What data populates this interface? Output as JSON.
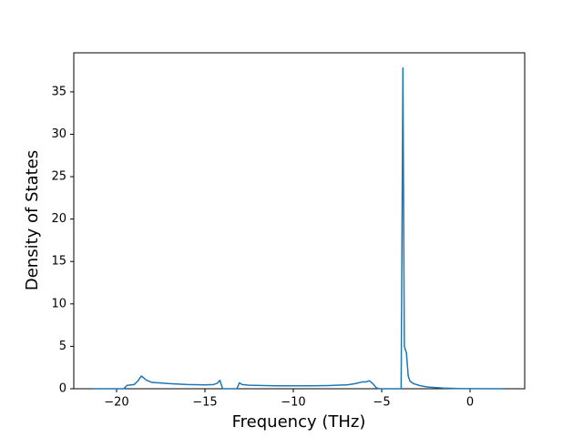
{
  "chart_data": {
    "type": "line",
    "xlabel": "Frequency (THz)",
    "ylabel": "Density of States",
    "x": [
      -21.4,
      -19.6,
      -19.4,
      -19.0,
      -18.8,
      -18.6,
      -18.3,
      -18.0,
      -17.0,
      -16.0,
      -15.0,
      -14.5,
      -14.3,
      -14.15,
      -14.0,
      -13.2,
      -13.05,
      -12.9,
      -12.5,
      -11.0,
      -9.0,
      -8.0,
      -7.0,
      -6.5,
      -6.1,
      -5.9,
      -5.7,
      -5.5,
      -5.3,
      -5.1,
      -3.9,
      -3.8,
      -3.72,
      -3.6,
      -3.5,
      -3.4,
      -3.2,
      -2.8,
      -2.4,
      -1.5,
      -0.5,
      1.9
    ],
    "values": [
      0,
      0,
      0.4,
      0.5,
      0.9,
      1.5,
      1.0,
      0.75,
      0.6,
      0.5,
      0.45,
      0.5,
      0.65,
      1.0,
      0,
      0,
      0.7,
      0.5,
      0.42,
      0.35,
      0.35,
      0.38,
      0.45,
      0.6,
      0.8,
      0.8,
      0.95,
      0.6,
      0.1,
      0,
      0,
      37.8,
      5.0,
      4.2,
      1.5,
      0.9,
      0.6,
      0.35,
      0.2,
      0.08,
      0.01,
      0
    ],
    "color": "#1f77b4",
    "xlim": [
      -22.42,
      3.09
    ],
    "xticks": [
      {
        "value": -20,
        "label": "−20"
      },
      {
        "value": -15,
        "label": "−15"
      },
      {
        "value": -10,
        "label": "−10"
      },
      {
        "value": -5,
        "label": "−5"
      },
      0
    ],
    "ylim": [
      0,
      39.6
    ],
    "yticks": [
      0,
      5,
      10,
      15,
      20,
      25,
      30,
      35
    ]
  }
}
